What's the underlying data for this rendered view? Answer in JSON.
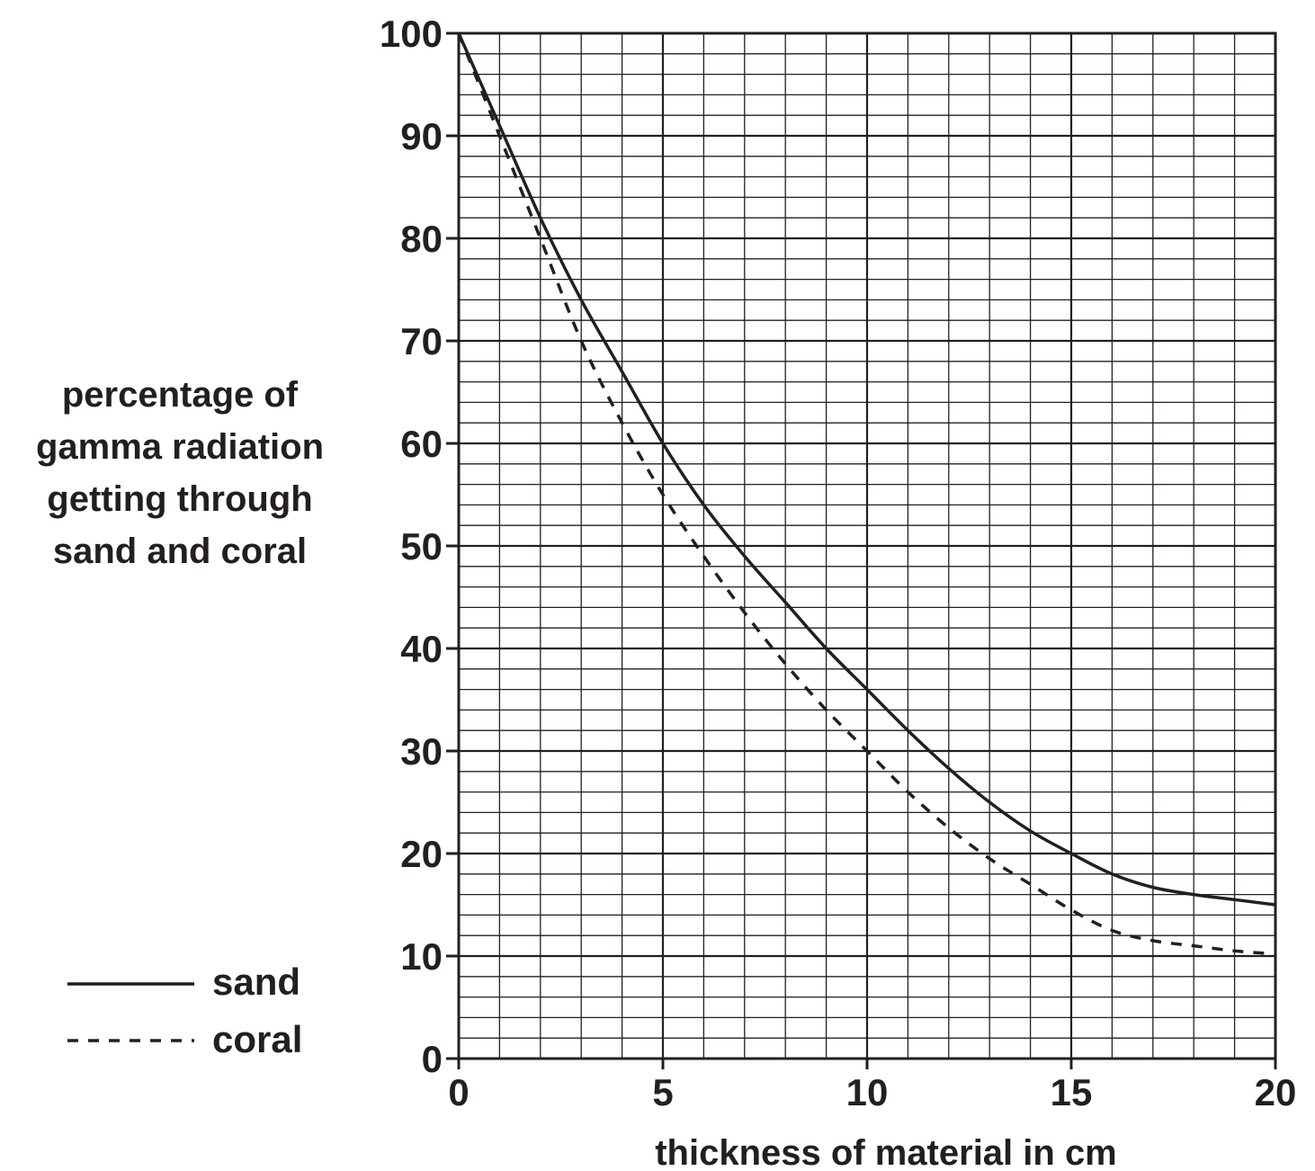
{
  "chart_data": {
    "type": "line",
    "title": "",
    "xlabel": "thickness of material in cm",
    "ylabel_lines": [
      "percentage of",
      "gamma radiation",
      "getting through",
      "sand and coral"
    ],
    "xlim": [
      0,
      20
    ],
    "ylim": [
      0,
      100
    ],
    "x_major_ticks": [
      "0",
      "5",
      "10",
      "15",
      "20"
    ],
    "y_major_ticks": [
      "0",
      "10",
      "20",
      "30",
      "40",
      "50",
      "60",
      "70",
      "80",
      "90",
      "100"
    ],
    "grid": true,
    "legend_position": "bottom-left",
    "colors": {
      "ink": "#231f20",
      "background": "#ffffff"
    },
    "series": [
      {
        "name": "sand",
        "line_style": "solid",
        "x": [
          0,
          1,
          2,
          3,
          4,
          5,
          6,
          7,
          8,
          9,
          10,
          11,
          12,
          13,
          14,
          15,
          16,
          17,
          18,
          19,
          20
        ],
        "y": [
          100,
          91,
          82,
          74,
          67,
          60,
          54,
          49,
          44.5,
          40,
          36,
          32,
          28.3,
          25,
          22.2,
          20,
          18,
          16.7,
          16,
          15.5,
          15
        ]
      },
      {
        "name": "coral",
        "line_style": "dashed",
        "x": [
          0,
          1,
          2,
          3,
          4,
          5,
          6,
          7,
          8,
          9,
          10,
          11,
          12,
          13,
          14,
          15,
          16,
          17,
          18,
          19,
          20
        ],
        "y": [
          100,
          90,
          80,
          70,
          62,
          55,
          49,
          43.5,
          38.5,
          34,
          30,
          26,
          22.5,
          19.5,
          17,
          14.5,
          12.5,
          11.5,
          11,
          10.5,
          10.2
        ]
      }
    ]
  }
}
